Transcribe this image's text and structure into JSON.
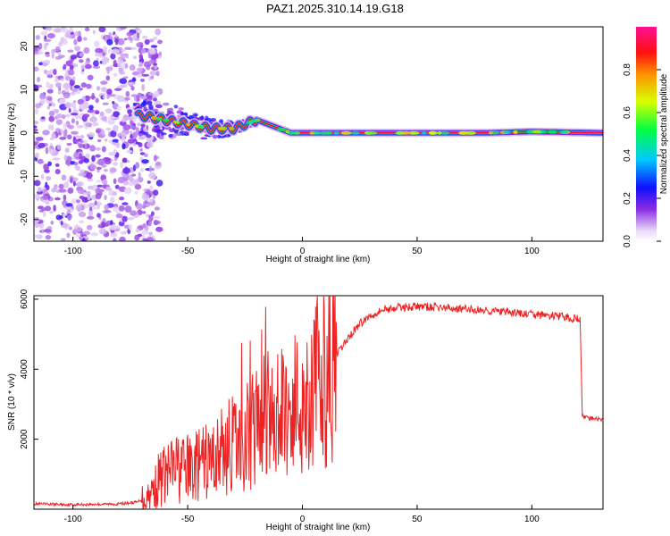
{
  "title": "PAZ1.2025.310.14.19.G18",
  "chart_data": [
    {
      "type": "heatmap",
      "name": "spectrogram",
      "xlabel": "Height of straight line (km)",
      "ylabel": "Frequency (Hz)",
      "xlim": [
        -117,
        131
      ],
      "ylim": [
        -25,
        24.5
      ],
      "xticks": [
        -100,
        -50,
        0,
        50,
        100
      ],
      "yticks": [
        -20,
        -10,
        0,
        10,
        20
      ],
      "colorbar": {
        "label": "Normalized spectral amplitude",
        "range": [
          0,
          1
        ],
        "ticks": [
          "0.0",
          "0.2",
          "0.4",
          "0.6",
          "0.8"
        ],
        "tick_values": [
          0.0,
          0.2,
          0.4,
          0.6,
          0.8
        ],
        "colormap": "rainbow"
      },
      "ridge": {
        "x": [
          -70,
          -60,
          -50,
          -40,
          -30,
          -20,
          -15,
          -10,
          -5,
          0,
          5,
          10,
          30,
          50,
          80,
          100,
          131
        ],
        "y": [
          4,
          3,
          2,
          1,
          1,
          3,
          2,
          1,
          0,
          0,
          0,
          0,
          0,
          0,
          0,
          0.3,
          0
        ]
      },
      "noise_region_x": [
        -117,
        -70
      ]
    },
    {
      "type": "line",
      "name": "snr",
      "xlabel": "Height of straight line (km)",
      "ylabel": "SNR (10 * v/v)",
      "xlim": [
        -117,
        131
      ],
      "ylim": [
        0,
        6100
      ],
      "xticks": [
        -100,
        -50,
        0,
        50,
        100
      ],
      "yticks": [
        2000,
        4000,
        6000
      ],
      "series": [
        {
          "name": "SNR",
          "color": "#ee2222",
          "x": [
            -117,
            -100,
            -80,
            -72,
            -66,
            -62,
            -55,
            -50,
            -45,
            -40,
            -35,
            -30,
            -25,
            -20,
            -15,
            -10,
            -5,
            0,
            5,
            10,
            15,
            20,
            25,
            30,
            35,
            40,
            45,
            50,
            55,
            60,
            70,
            80,
            90,
            100,
            110,
            118,
            121,
            122,
            125,
            131
          ],
          "values": [
            150,
            130,
            150,
            200,
            450,
            900,
            1200,
            1150,
            1250,
            1400,
            1650,
            1900,
            2100,
            2400,
            2600,
            2750,
            2900,
            3100,
            3500,
            3900,
            4400,
            4900,
            5300,
            5550,
            5700,
            5750,
            5780,
            5790,
            5780,
            5760,
            5720,
            5680,
            5620,
            5560,
            5520,
            5450,
            5450,
            2650,
            2600,
            2550
          ]
        }
      ]
    }
  ]
}
